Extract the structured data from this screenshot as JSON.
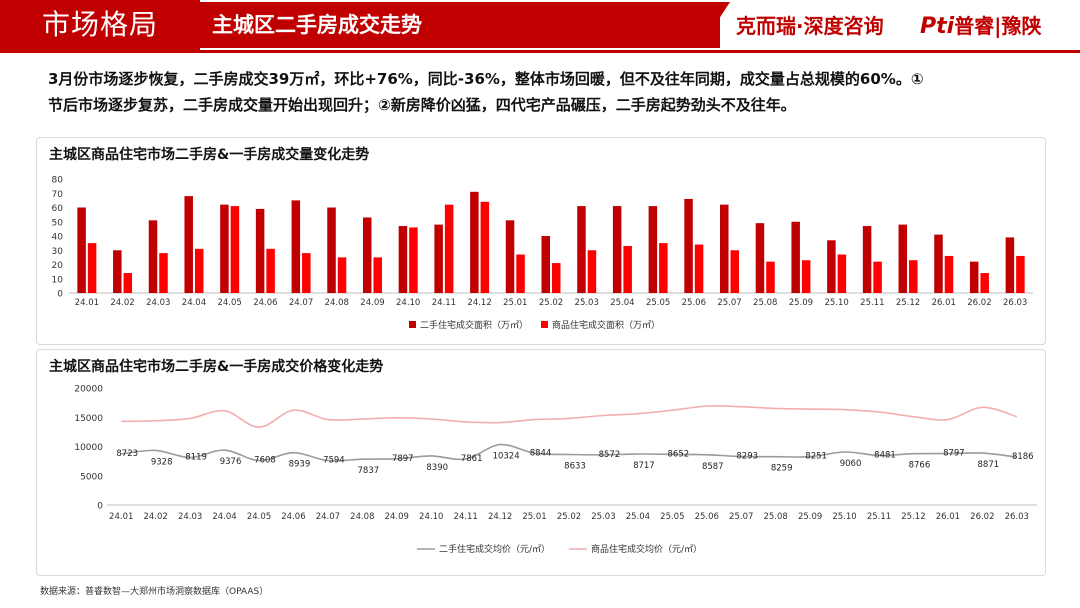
{
  "header": {
    "section": "市场格局",
    "title": "主城区二手房成交走势",
    "brand_a": "克而瑞·深度咨询",
    "brand_b_logo": "Pti",
    "brand_b": "普睿|豫陕"
  },
  "summary": {
    "line1": "3月份市场逐步恢复，二手房成交39万㎡，环比+76%，同比-36%，整体市场回暖，但不及往年同期，成交量占总规模的60%。①",
    "line2": "节后市场逐步复苏，二手房成交量开始出现回升；②新房降价凶猛，四代宅产品碾压，二手房起势劲头不及往年。"
  },
  "colors": {
    "brand_red": "#c00000",
    "series_dark": "#c00000",
    "series_light": "#ff0000",
    "second_hand_line": "#9b9b9b",
    "new_home_line": "#f2aeae"
  },
  "chart_data": [
    {
      "type": "bar",
      "title": "主城区商品住宅市场二手房&一手房成交量变化走势",
      "categories": [
        "24.01",
        "24.02",
        "24.03",
        "24.04",
        "24.05",
        "24.06",
        "24.07",
        "24.08",
        "24.09",
        "24.10",
        "24.11",
        "24.12",
        "25.01",
        "25.02",
        "25.03",
        "25.04",
        "25.05",
        "25.06",
        "25.07",
        "25.08",
        "25.09",
        "25.10",
        "25.11",
        "25.12",
        "26.01",
        "26.02",
        "26.03"
      ],
      "series": [
        {
          "name": "二手住宅成交面积（万㎡）",
          "values": [
            60,
            30,
            51,
            68,
            62,
            59,
            65,
            60,
            53,
            47,
            48,
            71,
            51,
            40,
            61,
            61,
            61,
            66,
            62,
            49,
            50,
            37,
            47,
            48,
            41,
            22,
            39
          ]
        },
        {
          "name": "商品住宅成交面积（万㎡）",
          "values": [
            35,
            14,
            28,
            31,
            61,
            31,
            28,
            25,
            25,
            46,
            62,
            64,
            27,
            21,
            30,
            33,
            35,
            34,
            30,
            22,
            23,
            27,
            22,
            23,
            26,
            14,
            26
          ]
        }
      ],
      "yticks": [
        0,
        10,
        20,
        30,
        40,
        50,
        60,
        70,
        80
      ],
      "ylim": [
        0,
        80
      ],
      "legend": "bottom-center"
    },
    {
      "type": "line",
      "title": "主城区商品住宅市场二手房&一手房成交价格变化走势",
      "categories": [
        "24.01",
        "24.02",
        "24.03",
        "24.04",
        "24.05",
        "24.06",
        "24.07",
        "24.08",
        "24.09",
        "24.10",
        "24.11",
        "24.12",
        "25.01",
        "25.02",
        "25.03",
        "25.04",
        "25.05",
        "25.06",
        "25.07",
        "25.08",
        "25.09",
        "25.10",
        "25.11",
        "25.12",
        "26.01",
        "26.02",
        "26.03"
      ],
      "series": [
        {
          "name": "二手住宅成交均价（元/㎡）",
          "values": [
            8723,
            9328,
            8119,
            9376,
            7608,
            8939,
            7594,
            7837,
            7897,
            8390,
            7861,
            10324,
            8844,
            8633,
            8572,
            8717,
            8652,
            8587,
            8293,
            8259,
            8251,
            9060,
            8481,
            8766,
            8797,
            8871,
            8186
          ]
        },
        {
          "name": "商品住宅成交均价（元/㎡）",
          "values": [
            14300,
            14400,
            14800,
            16100,
            13300,
            16200,
            14600,
            14700,
            14900,
            14700,
            14200,
            14100,
            14600,
            14800,
            15300,
            15600,
            16200,
            16900,
            16800,
            16500,
            16400,
            16300,
            15900,
            15100,
            14600,
            16700,
            15100
          ]
        }
      ],
      "yticks": [
        0,
        5000,
        10000,
        15000,
        20000
      ],
      "ylim": [
        0,
        20000
      ],
      "legend": "bottom-center"
    }
  ],
  "source": "数据来源：普睿数智—大郑州市场洞察数据库（OPAAS）"
}
